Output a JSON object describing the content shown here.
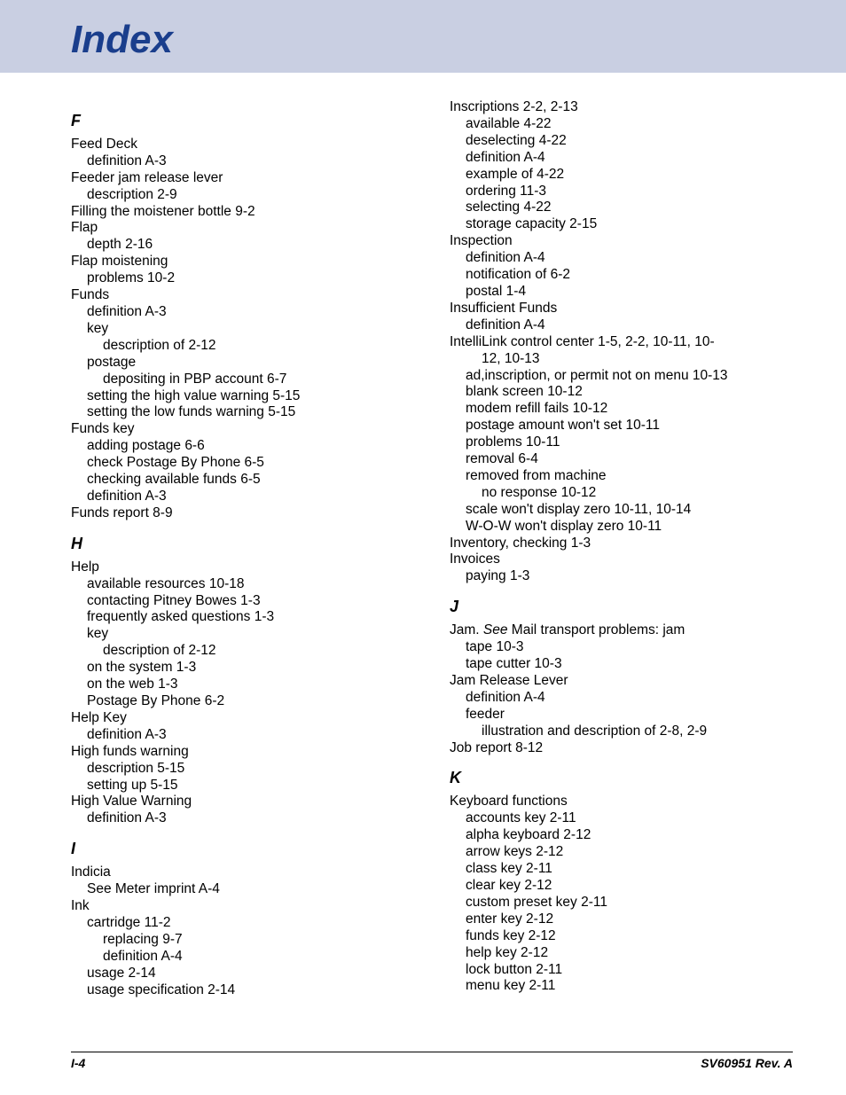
{
  "title": "Index",
  "footer_left": "I-4",
  "footer_right": "SV60951 Rev. A",
  "colors": {
    "header_bg": "#c9cfe2",
    "title_color": "#1a3e8c",
    "text_color": "#000000",
    "page_bg": "#ffffff"
  },
  "columns": [
    {
      "sections": [
        {
          "letter": "F",
          "entries": [
            {
              "t": "Feed Deck",
              "i": 0
            },
            {
              "t": "definition  A-3",
              "i": 1
            },
            {
              "t": "Feeder jam release lever",
              "i": 0
            },
            {
              "t": "description  2-9",
              "i": 1
            },
            {
              "t": "Filling the moistener bottle  9-2",
              "i": 0
            },
            {
              "t": "Flap",
              "i": 0
            },
            {
              "t": "depth  2-16",
              "i": 1
            },
            {
              "t": "Flap moistening",
              "i": 0
            },
            {
              "t": "problems  10-2",
              "i": 1
            },
            {
              "t": "Funds",
              "i": 0
            },
            {
              "t": "definition  A-3",
              "i": 1
            },
            {
              "t": "key",
              "i": 1
            },
            {
              "t": "description of  2-12",
              "i": 2
            },
            {
              "t": "postage",
              "i": 1
            },
            {
              "t": "depositing in PBP account  6-7",
              "i": 2
            },
            {
              "t": "setting the high value warning  5-15",
              "i": 1
            },
            {
              "t": "setting the low funds warning  5-15",
              "i": 1
            },
            {
              "t": "Funds key",
              "i": 0
            },
            {
              "t": "adding postage  6-6",
              "i": 1
            },
            {
              "t": "check Postage By Phone  6-5",
              "i": 1
            },
            {
              "t": "checking available funds  6-5",
              "i": 1
            },
            {
              "t": "definition  A-3",
              "i": 1
            },
            {
              "t": "Funds report  8-9",
              "i": 0
            }
          ]
        },
        {
          "letter": "H",
          "entries": [
            {
              "t": "Help",
              "i": 0
            },
            {
              "t": "available resources  10-18",
              "i": 1
            },
            {
              "t": "contacting Pitney Bowes  1-3",
              "i": 1
            },
            {
              "t": "frequently asked questions  1-3",
              "i": 1
            },
            {
              "t": "key",
              "i": 1
            },
            {
              "t": "description of  2-12",
              "i": 2
            },
            {
              "t": "on the system  1-3",
              "i": 1
            },
            {
              "t": "on the web  1-3",
              "i": 1
            },
            {
              "t": "Postage By Phone  6-2",
              "i": 1
            },
            {
              "t": "Help Key",
              "i": 0
            },
            {
              "t": "definition  A-3",
              "i": 1
            },
            {
              "t": "High funds warning",
              "i": 0
            },
            {
              "t": "description  5-15",
              "i": 1
            },
            {
              "t": "setting up  5-15",
              "i": 1
            },
            {
              "t": "High Value Warning",
              "i": 0
            },
            {
              "t": "definition  A-3",
              "i": 1
            }
          ]
        },
        {
          "letter": "I",
          "entries": [
            {
              "t": "Indicia",
              "i": 0
            },
            {
              "t": "See Meter imprint  A-4",
              "i": 1
            },
            {
              "t": "Ink",
              "i": 0
            },
            {
              "t": "cartridge  11-2",
              "i": 1
            },
            {
              "t": "replacing  9-7",
              "i": 2
            },
            {
              "t": "definition  A-4",
              "i": 2
            },
            {
              "t": "usage  2-14",
              "i": 1
            },
            {
              "t": "usage specification  2-14",
              "i": 1
            }
          ]
        }
      ]
    },
    {
      "sections": [
        {
          "letter": "",
          "entries": [
            {
              "t": "Inscriptions  2-2,  2-13",
              "i": 0
            },
            {
              "t": "available  4-22",
              "i": 1
            },
            {
              "t": "deselecting  4-22",
              "i": 1
            },
            {
              "t": "definition  A-4",
              "i": 1
            },
            {
              "t": "example of  4-22",
              "i": 1
            },
            {
              "t": "ordering  11-3",
              "i": 1
            },
            {
              "t": "selecting  4-22",
              "i": 1
            },
            {
              "t": "storage capacity  2-15",
              "i": 1
            },
            {
              "t": "Inspection",
              "i": 0
            },
            {
              "t": "definition  A-4",
              "i": 1
            },
            {
              "t": "notification of  6-2",
              "i": 1
            },
            {
              "t": "postal  1-4",
              "i": 1
            },
            {
              "t": "Insufficient Funds",
              "i": 0
            },
            {
              "t": "definition  A-4",
              "i": 1
            },
            {
              "t": "IntelliLink control center  1-5,  2-2,  10-11,  10-",
              "i": 0
            },
            {
              "t": "12,  10-13",
              "i": 2
            },
            {
              "t": "ad,inscription, or permit not on menu  10-13",
              "i": 1
            },
            {
              "t": "blank screen  10-12",
              "i": 1
            },
            {
              "t": "modem refill fails  10-12",
              "i": 1
            },
            {
              "t": "postage amount won't set  10-11",
              "i": 1
            },
            {
              "t": "problems  10-11",
              "i": 1
            },
            {
              "t": "removal  6-4",
              "i": 1
            },
            {
              "t": "removed from machine",
              "i": 1
            },
            {
              "t": "no response  10-12",
              "i": 2
            },
            {
              "t": "scale won't display  zero  10-11,  10-14",
              "i": 1
            },
            {
              "t": "W-O-W won't display  zero  10-11",
              "i": 1
            },
            {
              "t": "Inventory, checking  1-3",
              "i": 0
            },
            {
              "t": "Invoices",
              "i": 0
            },
            {
              "t": "paying  1-3",
              "i": 1
            }
          ]
        },
        {
          "letter": "J",
          "entries": [
            {
              "t": "Jam.  See Mail transport problems: jam",
              "i": 0,
              "see": true
            },
            {
              "t": "tape  10-3",
              "i": 1
            },
            {
              "t": "tape cutter  10-3",
              "i": 1
            },
            {
              "t": "Jam Release Lever",
              "i": 0
            },
            {
              "t": "definition  A-4",
              "i": 1
            },
            {
              "t": "feeder",
              "i": 1
            },
            {
              "t": "illustration and description of  2-8,  2-9",
              "i": 2
            },
            {
              "t": "Job report  8-12",
              "i": 0
            }
          ]
        },
        {
          "letter": "K",
          "entries": [
            {
              "t": "Keyboard functions",
              "i": 0
            },
            {
              "t": "accounts key  2-11",
              "i": 1
            },
            {
              "t": "alpha keyboard  2-12",
              "i": 1
            },
            {
              "t": "arrow keys  2-12",
              "i": 1
            },
            {
              "t": "class key  2-11",
              "i": 1
            },
            {
              "t": "clear key  2-12",
              "i": 1
            },
            {
              "t": "custom preset key  2-11",
              "i": 1
            },
            {
              "t": "enter key  2-12",
              "i": 1
            },
            {
              "t": "funds key  2-12",
              "i": 1
            },
            {
              "t": "help key  2-12",
              "i": 1
            },
            {
              "t": "lock button  2-11",
              "i": 1
            },
            {
              "t": "menu key  2-11",
              "i": 1
            }
          ]
        }
      ]
    }
  ]
}
